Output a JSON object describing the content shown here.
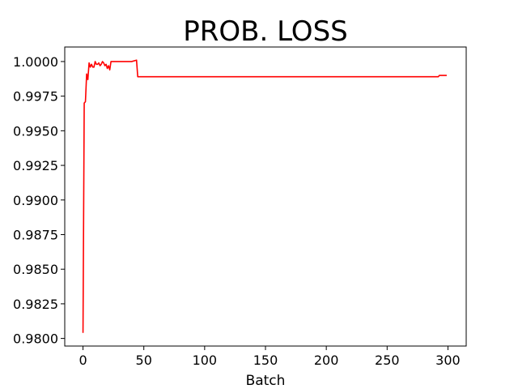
{
  "chart_data": {
    "type": "line",
    "title": "PROB. LOSS",
    "xlabel": "Batch",
    "ylabel": "",
    "xlim": [
      -15,
      315
    ],
    "ylim": [
      0.97945,
      1.00105
    ],
    "xticks": [
      0,
      50,
      100,
      150,
      200,
      250,
      300
    ],
    "xtick_labels": [
      "0",
      "50",
      "100",
      "150",
      "200",
      "250",
      "300"
    ],
    "yticks": [
      0.98,
      0.9825,
      0.985,
      0.9875,
      0.99,
      0.9925,
      0.995,
      0.9975,
      1.0
    ],
    "ytick_labels": [
      "0.9800",
      "0.9825",
      "0.9850",
      "0.9875",
      "0.9900",
      "0.9925",
      "0.9950",
      "0.9975",
      "1.0000"
    ],
    "grid": false,
    "series": [
      {
        "color": "#ff0000",
        "x": [
          0,
          1,
          2,
          3,
          4,
          5,
          6,
          7,
          8,
          9,
          10,
          11,
          12,
          13,
          14,
          15,
          16,
          17,
          18,
          19,
          20,
          21,
          22,
          23,
          24,
          25,
          30,
          35,
          40,
          44,
          45,
          46,
          50,
          100,
          150,
          200,
          250,
          292,
          293,
          299
        ],
        "y": [
          0.9804,
          0.997,
          0.9971,
          0.9991,
          0.9987,
          0.9999,
          0.9996,
          0.9998,
          0.9996,
          0.9996,
          1.0,
          0.9998,
          0.9998,
          0.9999,
          0.9997,
          0.9998,
          1.0,
          0.9999,
          0.9997,
          0.9998,
          0.9995,
          0.9997,
          0.9994,
          1.0,
          1.0,
          1.0,
          1.0,
          1.0,
          1.0,
          1.0001,
          0.9989,
          0.9989,
          0.9989,
          0.9989,
          0.9989,
          0.9989,
          0.9989,
          0.9989,
          0.999,
          0.999
        ]
      }
    ]
  }
}
